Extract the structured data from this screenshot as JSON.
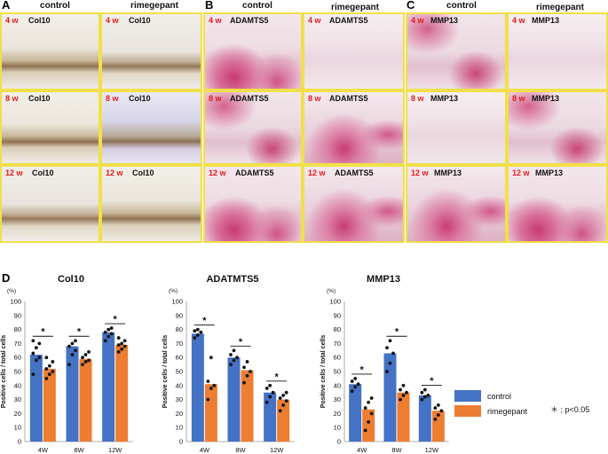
{
  "panels": {
    "A": {
      "letter": "A",
      "col_left": "control",
      "col_right": "rimegepant",
      "marker": "Col10"
    },
    "B": {
      "letter": "B",
      "col_left": "control",
      "col_right": "rimegepant",
      "marker": "ADAMTS5"
    },
    "C": {
      "letter": "C",
      "col_left": "control",
      "col_right": "rimegepant",
      "marker": "MMP13"
    },
    "D": {
      "letter": "D"
    }
  },
  "weeks": [
    "4 w",
    "8 w",
    "12 w"
  ],
  "sig_mark": "*",
  "legend": {
    "control": "control",
    "rimegepant": "rimegepant",
    "sig_note": "＊ ; p<0.05"
  },
  "colors": {
    "control": "#4472c4",
    "rimegepant": "#ed7d31",
    "tile_border": "#f0e04a",
    "week_label": "#e01b1b"
  },
  "chart_data": [
    {
      "type": "bar",
      "title": "Col10",
      "ylabel": "Positive cells / total cells",
      "unit": "(%)",
      "categories": [
        "4W",
        "8W",
        "12W"
      ],
      "ylim": [
        0,
        100
      ],
      "yticks": [
        0,
        10,
        20,
        30,
        40,
        50,
        60,
        70,
        80,
        90,
        100
      ],
      "series": [
        {
          "name": "control",
          "values": [
            62,
            68,
            78
          ]
        },
        {
          "name": "rimegepant",
          "values": [
            52,
            59,
            69
          ]
        }
      ],
      "significant": [
        true,
        true,
        true
      ],
      "points": {
        "control": [
          [
            48,
            58,
            60,
            63,
            67,
            70,
            72
          ],
          [
            55,
            62,
            65,
            68,
            70,
            72
          ],
          [
            72,
            75,
            77,
            78,
            80,
            81
          ]
        ],
        "rimegepant": [
          [
            45,
            48,
            50,
            52,
            54,
            57,
            60
          ],
          [
            55,
            57,
            58,
            60,
            62,
            64
          ],
          [
            64,
            66,
            68,
            69,
            70,
            72,
            74
          ]
        ]
      }
    },
    {
      "type": "bar",
      "title": "ADATMTS5",
      "ylabel": "Positive cells / total cells",
      "unit": "(%)",
      "categories": [
        "4W",
        "8W",
        "12W"
      ],
      "ylim": [
        0,
        100
      ],
      "yticks": [
        0,
        10,
        20,
        30,
        40,
        50,
        60,
        70,
        80,
        90,
        100
      ],
      "series": [
        {
          "name": "control",
          "values": [
            77,
            60,
            35
          ]
        },
        {
          "name": "rimegepant",
          "values": [
            41,
            51,
            30
          ]
        }
      ],
      "significant": [
        true,
        true,
        true
      ],
      "points": {
        "control": [
          [
            74,
            76,
            78,
            79,
            80
          ],
          [
            55,
            58,
            60,
            62,
            65
          ],
          [
            28,
            32,
            35,
            38,
            40
          ]
        ],
        "rimegepant": [
          [
            30,
            38,
            40,
            43,
            60
          ],
          [
            42,
            47,
            50,
            53,
            57
          ],
          [
            22,
            26,
            29,
            31,
            33,
            35
          ]
        ]
      }
    },
    {
      "type": "bar",
      "title": "MMP13",
      "ylabel": "Positive cells / total cells",
      "unit": "(%)",
      "categories": [
        "4W",
        "8W",
        "12W"
      ],
      "ylim": [
        0,
        100
      ],
      "yticks": [
        0,
        10,
        20,
        30,
        40,
        50,
        60,
        70,
        80,
        90,
        100
      ],
      "series": [
        {
          "name": "control",
          "values": [
            41,
            63,
            33
          ]
        },
        {
          "name": "rimegepant",
          "values": [
            23,
            35,
            22
          ]
        }
      ],
      "significant": [
        true,
        true,
        true
      ],
      "points": {
        "control": [
          [
            36,
            39,
            41,
            43,
            45
          ],
          [
            50,
            56,
            63,
            67,
            72
          ],
          [
            30,
            32,
            33,
            35,
            37
          ]
        ],
        "rimegepant": [
          [
            8,
            14,
            20,
            24,
            28,
            31
          ],
          [
            30,
            33,
            35,
            37,
            40
          ],
          [
            16,
            19,
            22,
            24,
            26
          ]
        ]
      }
    }
  ]
}
